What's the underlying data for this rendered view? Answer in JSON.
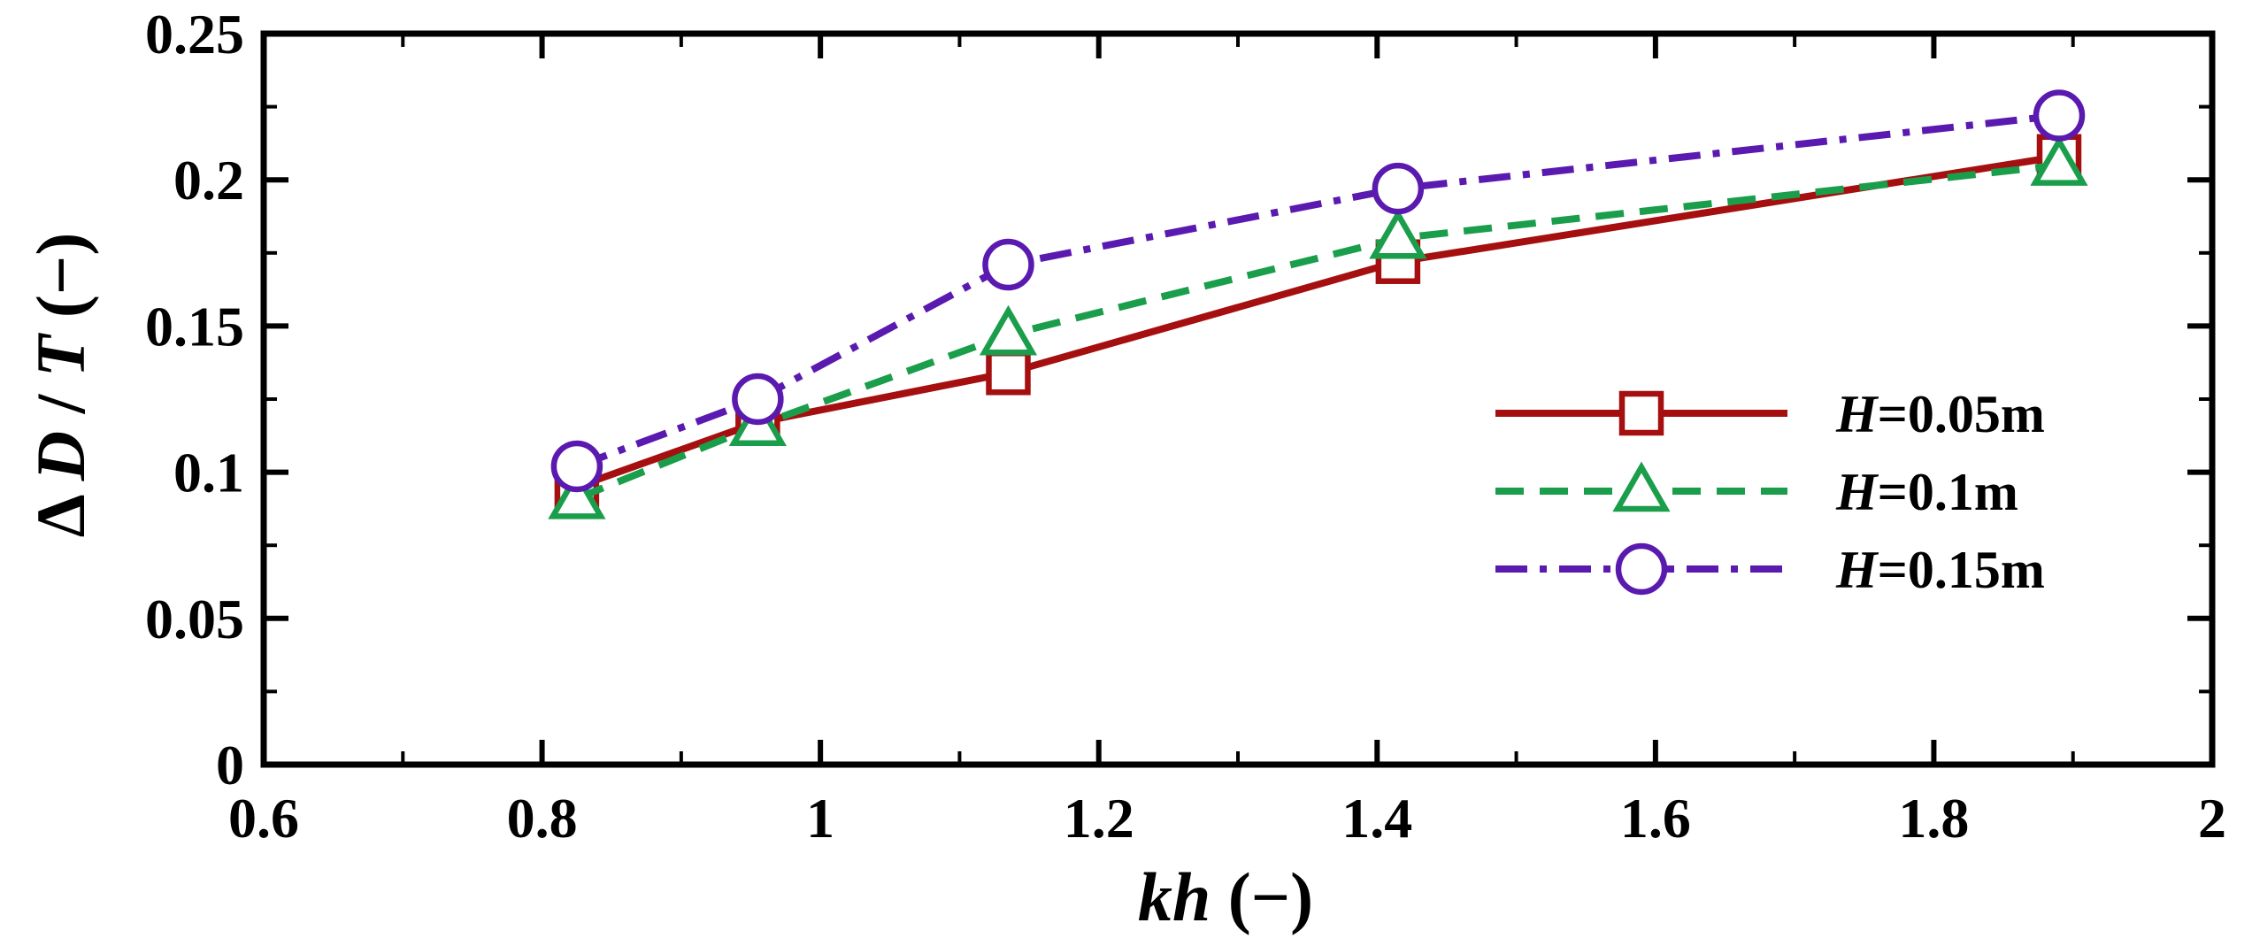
{
  "chart_data": {
    "type": "line",
    "xlabel_italic": "kh",
    "xlabel_rest": " (−)",
    "ylabel_prefix": "Δ ",
    "ylabel_var1": "D",
    "ylabel_sep": " / ",
    "ylabel_var2": "T",
    "ylabel_suffix": " (−)",
    "xlim": [
      0.6,
      2.0
    ],
    "ylim": [
      0,
      0.25
    ],
    "x_ticks": [
      "0.6",
      "0.8",
      "1",
      "1.2",
      "1.4",
      "1.6",
      "1.8",
      "2"
    ],
    "y_ticks": [
      "0",
      "0.05",
      "0.1",
      "0.15",
      "0.2",
      "0.25"
    ],
    "legend_position": "right",
    "series": [
      {
        "name_italic": "H",
        "name_rest": "=0.05m",
        "color": "#a50f0f",
        "marker": "square",
        "line_style": "solid",
        "x": [
          0.825,
          0.955,
          1.135,
          1.415,
          1.89
        ],
        "y": [
          0.095,
          0.117,
          0.134,
          0.172,
          0.208
        ]
      },
      {
        "name_italic": "H",
        "name_rest": "=0.1m",
        "color": "#1a9e4b",
        "marker": "triangle",
        "line_style": "dashed",
        "x": [
          0.825,
          0.955,
          1.135,
          1.415,
          1.89
        ],
        "y": [
          0.091,
          0.116,
          0.147,
          0.18,
          0.205
        ]
      },
      {
        "name_italic": "H",
        "name_rest": "=0.15m",
        "color": "#5a1ab0",
        "marker": "circle",
        "line_style": "dashdot",
        "x": [
          0.825,
          0.955,
          1.135,
          1.415,
          1.89
        ],
        "y": [
          0.102,
          0.125,
          0.171,
          0.197,
          0.222
        ]
      }
    ]
  }
}
